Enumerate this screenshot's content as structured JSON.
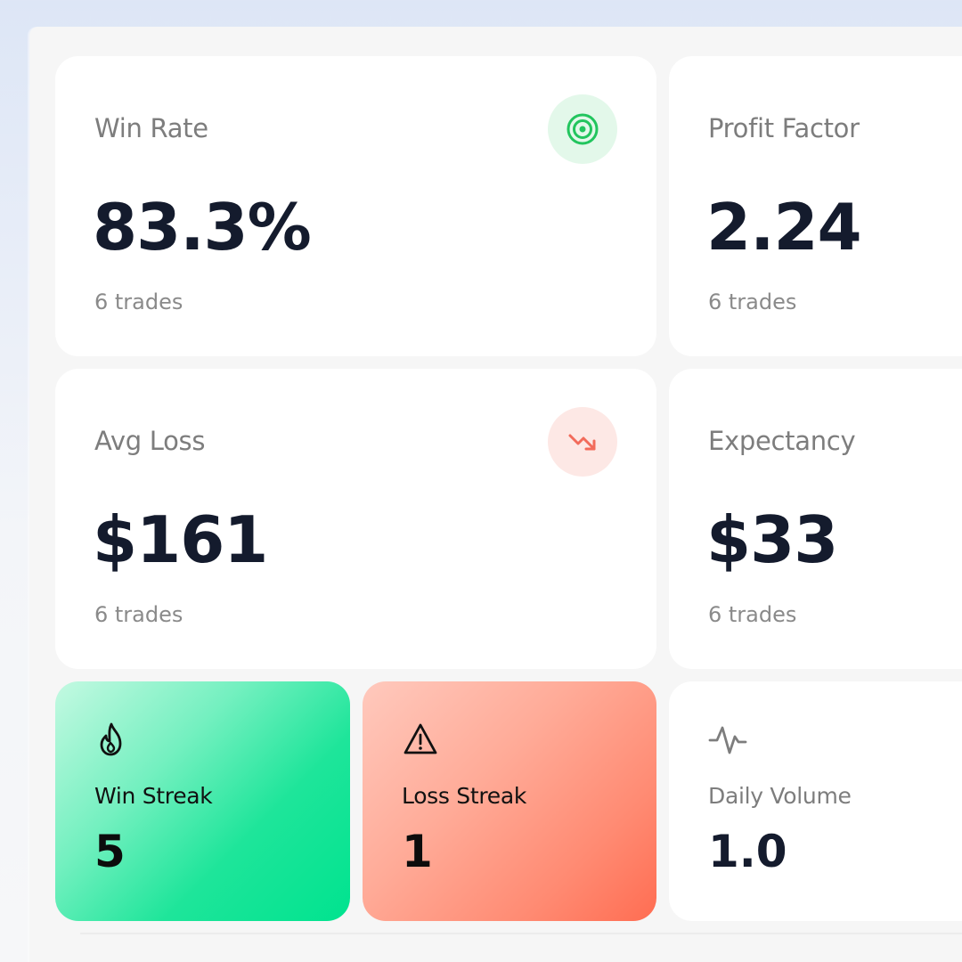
{
  "cards": [
    {
      "label": "Win Rate",
      "value": "83.3%",
      "sub": "6 trades",
      "icon": "target-icon",
      "icon_color": "#22c55e"
    },
    {
      "label": "Profit Factor",
      "value": "2.24",
      "sub": "6 trades"
    },
    {
      "label": "Avg Loss",
      "value": "$161",
      "sub": "6 trades",
      "icon": "trending-down-icon",
      "icon_color": "#f26b5b"
    },
    {
      "label": "Expectancy",
      "value": "$33",
      "sub": "6 trades"
    }
  ],
  "streaks": [
    {
      "label": "Win Streak",
      "value": "5",
      "icon": "flame-icon"
    },
    {
      "label": "Loss Streak",
      "value": "1",
      "icon": "warning-icon"
    },
    {
      "label": "Daily Volume",
      "value": "1.0",
      "icon": "activity-icon"
    }
  ],
  "colors": {
    "win_gradient_start": "#c4f9e2",
    "win_gradient_end": "#00e38f",
    "loss_gradient_start": "#ffc9bd",
    "loss_gradient_end": "#ff6d52",
    "value_text": "#141b2d",
    "muted_text": "#7d7d7d"
  }
}
